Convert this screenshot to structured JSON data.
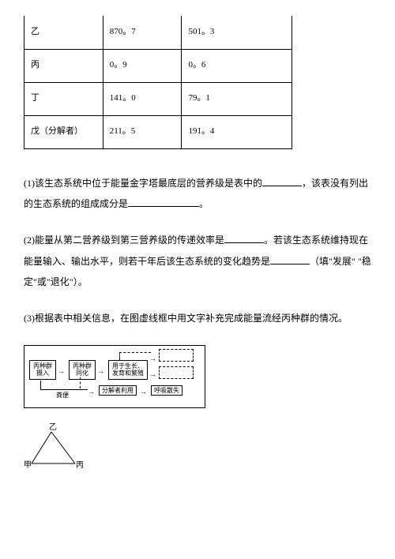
{
  "table": {
    "rows": [
      {
        "label": "乙",
        "val1": "870。7",
        "val2": "501。3"
      },
      {
        "label": "丙",
        "val1": "0。9",
        "val2": "0。6"
      },
      {
        "label": "丁",
        "val1": "141。0",
        "val2": "79。1"
      },
      {
        "label": "戊（分解者）",
        "val1": "211。5",
        "val2": "191。4"
      }
    ]
  },
  "questions": {
    "q1_part1": "(1)该生态系统中位于能量金字塔最底层的营养级是表中的",
    "q1_part2": "，该表没有列出的生态系统的组成成分是",
    "q1_part3": "。",
    "q2_part1": "(2)能量从第二营养级到第三营养级的传递效率是",
    "q2_part2": "。若该生态系统维持现在能量输入、输出水平，则若干年后该生态系统的变化趋势是",
    "q2_part3": "（填\"发展\" \"稳定\"或\"退化\"）。",
    "q3": "(3)根据表中相关信息，在图虚线框中用文字补充完成能量流经丙种群的情况。"
  },
  "flowchart": {
    "box1": "丙种群\n摄入",
    "box2": "丙种群\n同化",
    "box3": "用于生长、\n发育和繁殖",
    "box4": "分解者利用",
    "box5": "呼吸散失",
    "label_fen": "粪便"
  },
  "triangle": {
    "top": "乙",
    "left": "甲",
    "right": "丙"
  }
}
